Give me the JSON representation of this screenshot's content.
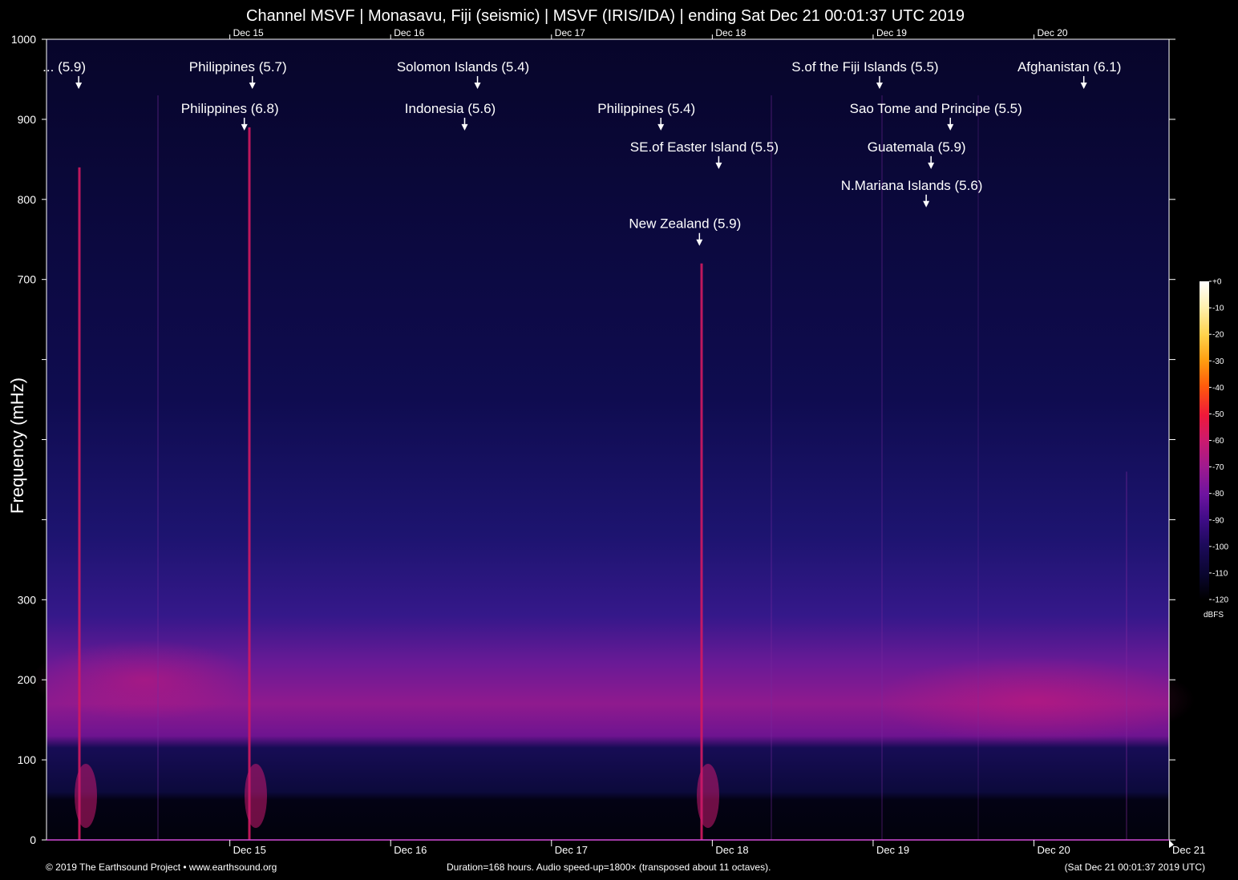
{
  "chart_data": {
    "type": "heatmap",
    "title": "Channel MSVF | Monasavu, Fiji (seismic) | MSVF (IRIS/IDA) | ending Sat Dec 21 00:01:37 UTC 2019",
    "ylabel": "Frequency (mHz)",
    "xlabel": "",
    "ylim": [
      0,
      1000
    ],
    "xlim_days": [
      -6.98,
      0
    ],
    "y_ticks": [
      {
        "value": 1000,
        "label": "1000"
      },
      {
        "value": 900,
        "label": "900"
      },
      {
        "value": 800,
        "label": "800"
      },
      {
        "value": 700,
        "label": "700"
      },
      {
        "value": 600,
        "label": ""
      },
      {
        "value": 500,
        "label": ""
      },
      {
        "value": 400,
        "label": ""
      },
      {
        "value": 300,
        "label": "300"
      },
      {
        "value": 200,
        "label": "200"
      },
      {
        "value": 100,
        "label": "100"
      },
      {
        "value": 0,
        "label": "0"
      }
    ],
    "x_ticks": [
      {
        "day": -5.84,
        "label": "Dec 15"
      },
      {
        "day": -4.84,
        "label": "Dec 16"
      },
      {
        "day": -3.84,
        "label": "Dec 17"
      },
      {
        "day": -2.84,
        "label": "Dec 18"
      },
      {
        "day": -1.84,
        "label": "Dec 19"
      },
      {
        "day": -0.84,
        "label": "Dec 20"
      },
      {
        "day": 0.16,
        "label": "Dec 21"
      }
    ],
    "events": [
      {
        "label": "... (5.9)",
        "day": -6.78,
        "freq": 940
      },
      {
        "label": "Philippines (5.7)",
        "day": -5.7,
        "freq": 940
      },
      {
        "label": "Philippines (6.8)",
        "day": -5.75,
        "freq": 888
      },
      {
        "label": "Solomon Islands (5.4)",
        "day": -4.3,
        "freq": 940
      },
      {
        "label": "Indonesia (5.6)",
        "day": -4.38,
        "freq": 888
      },
      {
        "label": "Philippines (5.4)",
        "day": -3.16,
        "freq": 888
      },
      {
        "label": "SE.of Easter Island (5.5)",
        "day": -2.8,
        "freq": 840
      },
      {
        "label": "New Zealand (5.9)",
        "day": -2.92,
        "freq": 744
      },
      {
        "label": "S.of the Fiji Islands (5.5)",
        "day": -1.8,
        "freq": 940
      },
      {
        "label": "Sao Tome and Principe (5.5)",
        "day": -1.36,
        "freq": 888
      },
      {
        "label": "Guatemala (5.9)",
        "day": -1.48,
        "freq": 840
      },
      {
        "label": "N.Mariana Islands (5.6)",
        "day": -1.51,
        "freq": 792
      },
      {
        "label": "Afghanistan (6.1)",
        "day": -0.53,
        "freq": 940
      }
    ],
    "colorbar": {
      "unit": "dBFS",
      "range": [
        -120,
        0
      ],
      "ticks": [
        0,
        -10,
        -20,
        -30,
        -40,
        -50,
        -60,
        -70,
        -80,
        -90,
        -100,
        -110,
        -120
      ],
      "tick_labels": [
        "+0",
        "-10",
        "-20",
        "-30",
        "-40",
        "-50",
        "-60",
        "-70",
        "-80",
        "-90",
        "-100",
        "-110",
        "-120"
      ],
      "colormap": [
        "#ffffff",
        "#fff1b0",
        "#ffd24a",
        "#ff9d10",
        "#ff5a0c",
        "#f0193a",
        "#cc1a6e",
        "#a01a8e",
        "#6e14a0",
        "#3e0c86",
        "#1c0a5a",
        "#0a0630",
        "#000000"
      ]
    },
    "grid": false
  },
  "footer": {
    "left": "© 2019 The Earthsound Project • www.earthsound.org",
    "center": "Duration=168 hours. Audio speed-up=1800× (transposed about 11 octaves).",
    "right": "(Sat Dec 21 00:01:37 2019 UTC)"
  }
}
